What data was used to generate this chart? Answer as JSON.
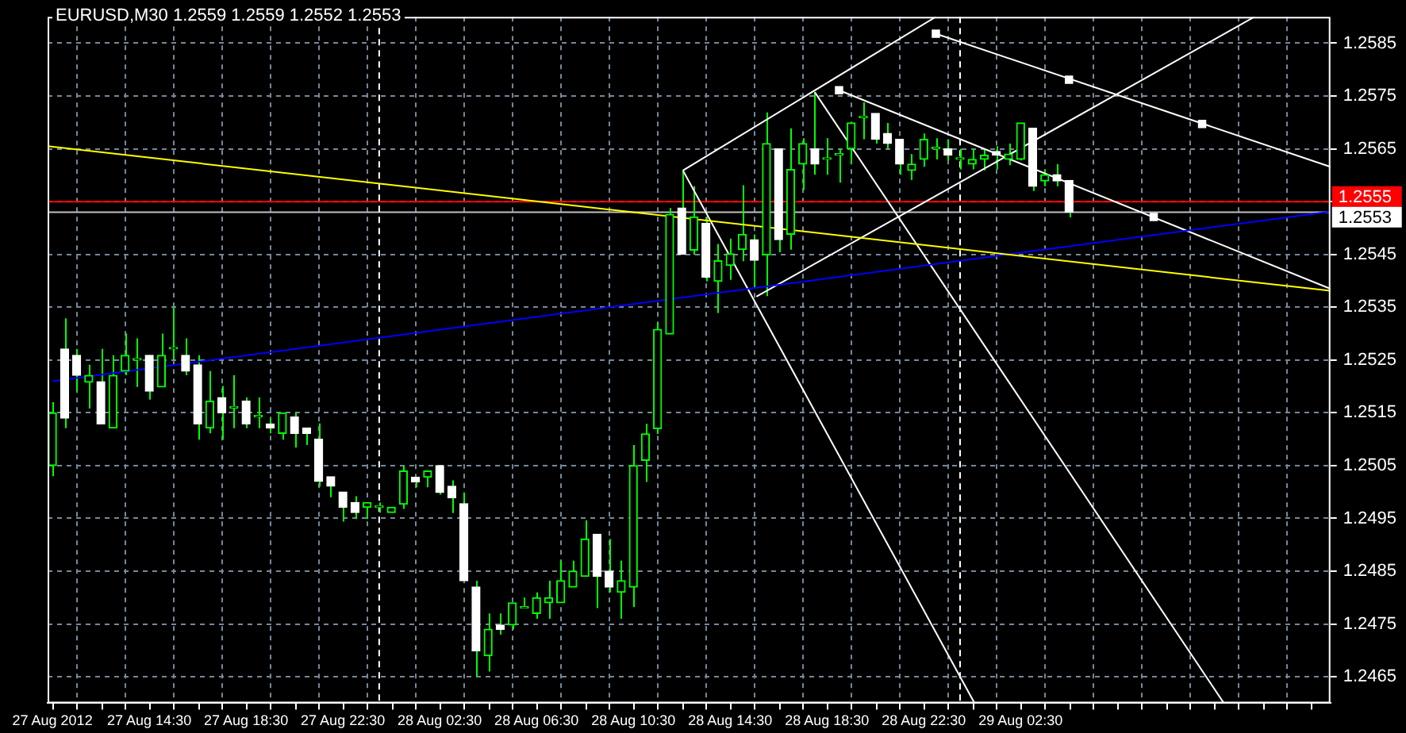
{
  "chart_data": {
    "type": "candlestick",
    "title": "EURUSD,M30 1.2559 1.2559 1.2552 1.2553",
    "x": [
      "2012-08-27T10:30",
      "2012-08-27T11:00",
      "2012-08-27T11:30",
      "2012-08-27T12:00",
      "2012-08-27T12:30",
      "2012-08-27T13:00",
      "2012-08-27T13:30",
      "2012-08-27T14:00",
      "2012-08-27T14:30",
      "2012-08-27T15:00",
      "2012-08-27T15:30",
      "2012-08-27T16:00",
      "2012-08-27T16:30",
      "2012-08-27T17:00",
      "2012-08-27T17:30",
      "2012-08-27T18:00",
      "2012-08-27T18:30",
      "2012-08-27T19:00",
      "2012-08-27T19:30",
      "2012-08-27T20:00",
      "2012-08-27T20:30",
      "2012-08-27T21:00",
      "2012-08-27T21:30",
      "2012-08-27T22:00",
      "2012-08-27T22:30",
      "2012-08-27T23:00",
      "2012-08-27T23:30",
      "2012-08-28T00:00",
      "2012-08-28T00:30",
      "2012-08-28T01:00",
      "2012-08-28T01:30",
      "2012-08-28T02:00",
      "2012-08-28T02:30",
      "2012-08-28T03:00",
      "2012-08-28T03:30",
      "2012-08-28T04:00",
      "2012-08-28T04:30",
      "2012-08-28T05:00",
      "2012-08-28T05:30",
      "2012-08-28T06:00",
      "2012-08-28T06:30",
      "2012-08-28T07:00",
      "2012-08-28T07:30",
      "2012-08-28T08:00",
      "2012-08-28T08:30",
      "2012-08-28T09:00",
      "2012-08-28T09:30",
      "2012-08-28T10:00",
      "2012-08-28T10:30",
      "2012-08-28T11:00",
      "2012-08-28T11:30",
      "2012-08-28T12:00",
      "2012-08-28T12:30",
      "2012-08-28T13:00",
      "2012-08-28T13:30",
      "2012-08-28T14:00",
      "2012-08-28T14:30",
      "2012-08-28T15:00",
      "2012-08-28T15:30",
      "2012-08-28T16:00",
      "2012-08-28T16:30",
      "2012-08-28T17:00",
      "2012-08-28T17:30",
      "2012-08-28T18:00",
      "2012-08-28T18:30",
      "2012-08-28T19:00",
      "2012-08-28T19:30",
      "2012-08-28T20:00",
      "2012-08-28T20:30",
      "2012-08-28T21:00",
      "2012-08-28T21:30",
      "2012-08-28T22:00",
      "2012-08-28T22:30",
      "2012-08-28T23:00",
      "2012-08-28T23:30",
      "2012-08-29T00:00",
      "2012-08-29T00:30",
      "2012-08-29T01:00",
      "2012-08-29T01:30",
      "2012-08-29T02:00",
      "2012-08-29T02:30",
      "2012-08-29T03:00",
      "2012-08-29T03:30",
      "2012-08-29T04:00",
      "2012-08-29T04:30"
    ],
    "ohlc": [
      [
        1.2505,
        1.2517,
        1.2503,
        1.2515
      ],
      [
        1.25271,
        1.25329,
        1.25121,
        1.2514
      ],
      [
        1.25259,
        1.25271,
        1.25191,
        1.25221
      ],
      [
        1.25208,
        1.25241,
        1.25158,
        1.25221
      ],
      [
        1.25209,
        1.25271,
        1.25129,
        1.25129
      ],
      [
        1.25121,
        1.25259,
        1.25121,
        1.25221
      ],
      [
        1.25229,
        1.253,
        1.25221,
        1.25259
      ],
      [
        1.2525,
        1.25291,
        1.25199,
        1.2525
      ],
      [
        1.25259,
        1.25259,
        1.25175,
        1.25191
      ],
      [
        1.25199,
        1.253,
        1.25199,
        1.25259
      ],
      [
        1.25271,
        1.2535,
        1.2525,
        1.25271
      ],
      [
        1.25259,
        1.25291,
        1.25221,
        1.25229
      ],
      [
        1.25241,
        1.25259,
        1.25099,
        1.25129
      ],
      [
        1.25121,
        1.25229,
        1.25111,
        1.25172
      ],
      [
        1.25179,
        1.25201,
        1.25099,
        1.2515
      ],
      [
        1.25159,
        1.25221,
        1.25121,
        1.25159
      ],
      [
        1.25172,
        1.25179,
        1.25121,
        1.25129
      ],
      [
        1.25142,
        1.25179,
        1.25121,
        1.25142
      ],
      [
        1.25129,
        1.2514,
        1.25111,
        1.25121
      ],
      [
        1.25111,
        1.2515,
        1.25099,
        1.2515
      ],
      [
        1.25142,
        1.2515,
        1.25084,
        1.25111
      ],
      [
        1.25121,
        1.25121,
        1.25089,
        1.25111
      ],
      [
        1.251,
        1.2513,
        1.2501,
        1.2502
      ],
      [
        1.25029,
        1.25029,
        1.2499,
        1.25011
      ],
      [
        1.25,
        1.25,
        1.24944,
        1.24971
      ],
      [
        1.2498,
        1.24992,
        1.24949,
        1.24961
      ],
      [
        1.24971,
        1.2498,
        1.24949,
        1.2498
      ],
      [
        1.24971,
        1.2498,
        1.24961,
        1.24971
      ],
      [
        1.24961,
        1.24971,
        1.24961,
        1.24971
      ],
      [
        1.24977,
        1.2505,
        1.24968,
        1.2504
      ],
      [
        1.25028,
        1.25028,
        1.25009,
        1.25019
      ],
      [
        1.25028,
        1.2504,
        1.25009,
        1.2504
      ],
      [
        1.2505,
        1.2505,
        1.24995,
        1.24999
      ],
      [
        1.25011,
        1.25022,
        1.2496,
        1.24989
      ],
      [
        1.24978,
        1.24999,
        1.24832,
        1.24832
      ],
      [
        1.2482,
        1.24832,
        1.2465,
        1.24699
      ],
      [
        1.2469,
        1.2477,
        1.2466,
        1.2474
      ],
      [
        1.24748,
        1.2477,
        1.2473,
        1.2474
      ],
      [
        1.24748,
        1.2479,
        1.2474,
        1.2479
      ],
      [
        1.2478,
        1.248,
        1.2478,
        1.2478
      ],
      [
        1.2477,
        1.2481,
        1.2476,
        1.248
      ],
      [
        1.2479,
        1.24832,
        1.2476,
        1.248
      ],
      [
        1.2479,
        1.2487,
        1.2479,
        1.24832
      ],
      [
        1.2482,
        1.2487,
        1.2482,
        1.2485
      ],
      [
        1.2484,
        1.24946,
        1.2484,
        1.24911
      ],
      [
        1.2492,
        1.2492,
        1.2478,
        1.2484
      ],
      [
        1.2485,
        1.24911,
        1.2481,
        1.2482
      ],
      [
        1.2481,
        1.2487,
        1.2476,
        1.24832
      ],
      [
        1.2482,
        1.25089,
        1.24782,
        1.2505
      ],
      [
        1.2506,
        1.25129,
        1.25019,
        1.2511
      ],
      [
        1.2512,
        1.25321,
        1.2511,
        1.25308
      ],
      [
        1.25299,
        1.25538,
        1.25299,
        1.25526
      ],
      [
        1.25538,
        1.2561,
        1.2545,
        1.2545
      ],
      [
        1.25458,
        1.25579,
        1.25449,
        1.25521
      ],
      [
        1.25509,
        1.25521,
        1.25399,
        1.25407
      ],
      [
        1.25399,
        1.2547,
        1.25339,
        1.25438
      ],
      [
        1.25429,
        1.2548,
        1.25402,
        1.25451
      ],
      [
        1.25459,
        1.25581,
        1.25437,
        1.25488
      ],
      [
        1.25478,
        1.25488,
        1.2539,
        1.25439
      ],
      [
        1.25449,
        1.25719,
        1.25371,
        1.2566
      ],
      [
        1.2565,
        1.2565,
        1.25454,
        1.25478
      ],
      [
        1.25488,
        1.25689,
        1.25459,
        1.25611
      ],
      [
        1.25621,
        1.2567,
        1.25572,
        1.2566
      ],
      [
        1.2565,
        1.25758,
        1.25601,
        1.25621
      ],
      [
        1.2563,
        1.2567,
        1.25601,
        1.2563
      ],
      [
        1.25638,
        1.2565,
        1.25586,
        1.25638
      ],
      [
        1.2565,
        1.25699,
        1.25621,
        1.25699
      ],
      [
        1.25709,
        1.25738,
        1.25668,
        1.25709
      ],
      [
        1.25717,
        1.25717,
        1.2566,
        1.25668
      ],
      [
        1.25679,
        1.25699,
        1.2565,
        1.2566
      ],
      [
        1.25668,
        1.25668,
        1.25601,
        1.25621
      ],
      [
        1.25609,
        1.2564,
        1.25591,
        1.25621
      ],
      [
        1.2563,
        1.25679,
        1.25616,
        1.25668
      ],
      [
        1.2565,
        1.2567,
        1.2563,
        1.2565
      ],
      [
        1.2565,
        1.25668,
        1.25628,
        1.25638
      ],
      [
        1.2563,
        1.2565,
        1.25611,
        1.2563
      ],
      [
        1.25621,
        1.2565,
        1.25611,
        1.2563
      ],
      [
        1.2563,
        1.2565,
        1.25609,
        1.25638
      ],
      [
        1.25645,
        1.25655,
        1.25611,
        1.25638
      ],
      [
        1.2563,
        1.2566,
        1.25619,
        1.2564
      ],
      [
        1.2563,
        1.25699,
        1.25628,
        1.25699
      ],
      [
        1.25689,
        1.25689,
        1.2557,
        1.25579
      ],
      [
        1.25589,
        1.25611,
        1.25579,
        1.25601
      ],
      [
        1.25601,
        1.25621,
        1.25579,
        1.25589
      ],
      [
        1.2559,
        1.2559,
        1.2552,
        1.2553
      ]
    ],
    "series": [
      {
        "type": "line",
        "color": "#ffff00",
        "x": [
          "2012-08-27T10:18",
          "2012-08-29T15:18"
        ],
        "values": [
          1.25655,
          1.25381
        ]
      },
      {
        "type": "line",
        "color": "#0000ff",
        "x": [
          "2012-08-27T10:30",
          "2012-08-29T15:18"
        ],
        "values": [
          1.2521,
          1.25531
        ]
      },
      {
        "type": "line",
        "color": "#ffffff",
        "x": [
          "2012-08-28T12:33",
          "2012-08-28T23:00"
        ],
        "values": [
          1.25609,
          1.259
        ]
      },
      {
        "type": "line",
        "color": "#ffffff",
        "x": [
          "2012-08-28T15:35",
          "2012-08-29T12:10"
        ],
        "values": [
          1.2537,
          1.259
        ]
      },
      {
        "type": "line",
        "color": "#ffffff",
        "x": [
          "2012-08-28T12:33",
          "2012-08-29T00:36"
        ],
        "values": [
          1.25609,
          1.246
        ]
      },
      {
        "type": "line",
        "color": "#ffffff",
        "x": [
          "2012-08-28T18:00",
          "2012-08-29T10:54"
        ],
        "values": [
          1.25757,
          1.246
        ]
      },
      {
        "type": "line",
        "color": "#ffffff",
        "x": [
          "2012-08-28T19:00",
          "2012-08-29T15:18"
        ],
        "values": [
          1.25761,
          1.25385
        ]
      },
      {
        "type": "line",
        "color": "#ffffff",
        "x": [
          "2012-08-28T23:00",
          "2012-08-29T15:18"
        ],
        "values": [
          1.25868,
          1.25616
        ]
      },
      {
        "type": "scatter",
        "marker": "square",
        "color": "#ffffff",
        "x": [
          "2012-08-28T19:00",
          "2012-08-28T23:00",
          "2012-08-29T04:30",
          "2012-08-29T08:00",
          "2012-08-29T10:00"
        ],
        "values": [
          1.25761,
          1.25868,
          1.25781,
          1.25521,
          1.25697
        ]
      }
    ],
    "ref_lines": [
      {
        "axis": "y",
        "value": 1.2555,
        "label": "1.2555",
        "color": "#ff0000"
      },
      {
        "axis": "y",
        "value": 1.2553,
        "label": "1.2553",
        "color": "#c0c0c0"
      },
      {
        "axis": "x",
        "value": "2012-08-28T00:00",
        "color": "#ffffff",
        "line_style": "dashed"
      },
      {
        "axis": "x",
        "value": "2012-08-29T00:00",
        "color": "#ffffff",
        "line_style": "dashed"
      }
    ],
    "xlim": [
      "2012-08-27T10:18",
      "2012-08-29T15:18"
    ],
    "xticks": [
      {
        "value": "2012-08-27T10:30",
        "label": "27 Aug 2012"
      },
      {
        "value": "2012-08-27T12:30",
        "label": null
      },
      {
        "value": "2012-08-27T14:30",
        "label": "27 Aug 14:30"
      },
      {
        "value": "2012-08-27T16:30",
        "label": null
      },
      {
        "value": "2012-08-27T18:30",
        "label": "27 Aug 18:30"
      },
      {
        "value": "2012-08-27T20:30",
        "label": null
      },
      {
        "value": "2012-08-27T22:30",
        "label": "27 Aug 22:30"
      },
      {
        "value": "2012-08-28T00:30",
        "label": null
      },
      {
        "value": "2012-08-28T02:30",
        "label": "28 Aug 02:30"
      },
      {
        "value": "2012-08-28T04:30",
        "label": null
      },
      {
        "value": "2012-08-28T06:30",
        "label": "28 Aug 06:30"
      },
      {
        "value": "2012-08-28T08:30",
        "label": null
      },
      {
        "value": "2012-08-28T10:30",
        "label": "28 Aug 10:30"
      },
      {
        "value": "2012-08-28T12:30",
        "label": null
      },
      {
        "value": "2012-08-28T14:30",
        "label": "28 Aug 14:30"
      },
      {
        "value": "2012-08-28T16:30",
        "label": null
      },
      {
        "value": "2012-08-28T18:30",
        "label": "28 Aug 18:30"
      },
      {
        "value": "2012-08-28T20:30",
        "label": null
      },
      {
        "value": "2012-08-28T22:30",
        "label": "28 Aug 22:30"
      },
      {
        "value": "2012-08-29T00:30",
        "label": null
      },
      {
        "value": "2012-08-29T02:30",
        "label": "29 Aug 02:30"
      },
      {
        "value": "2012-08-29T04:30",
        "label": null
      },
      {
        "value": "2012-08-29T06:30",
        "label": null
      },
      {
        "value": "2012-08-29T08:30",
        "label": null
      },
      {
        "value": "2012-08-29T10:30",
        "label": null
      },
      {
        "value": "2012-08-29T12:30",
        "label": null
      },
      {
        "value": "2012-08-29T14:30",
        "label": null
      }
    ],
    "ylim": [
      1.246,
      1.259
    ],
    "yticks": [
      1.2465,
      1.2475,
      1.2485,
      1.2495,
      1.2505,
      1.2515,
      1.2525,
      1.2535,
      1.2545,
      1.2555,
      1.2565,
      1.2575,
      1.2585
    ],
    "grid": true
  }
}
